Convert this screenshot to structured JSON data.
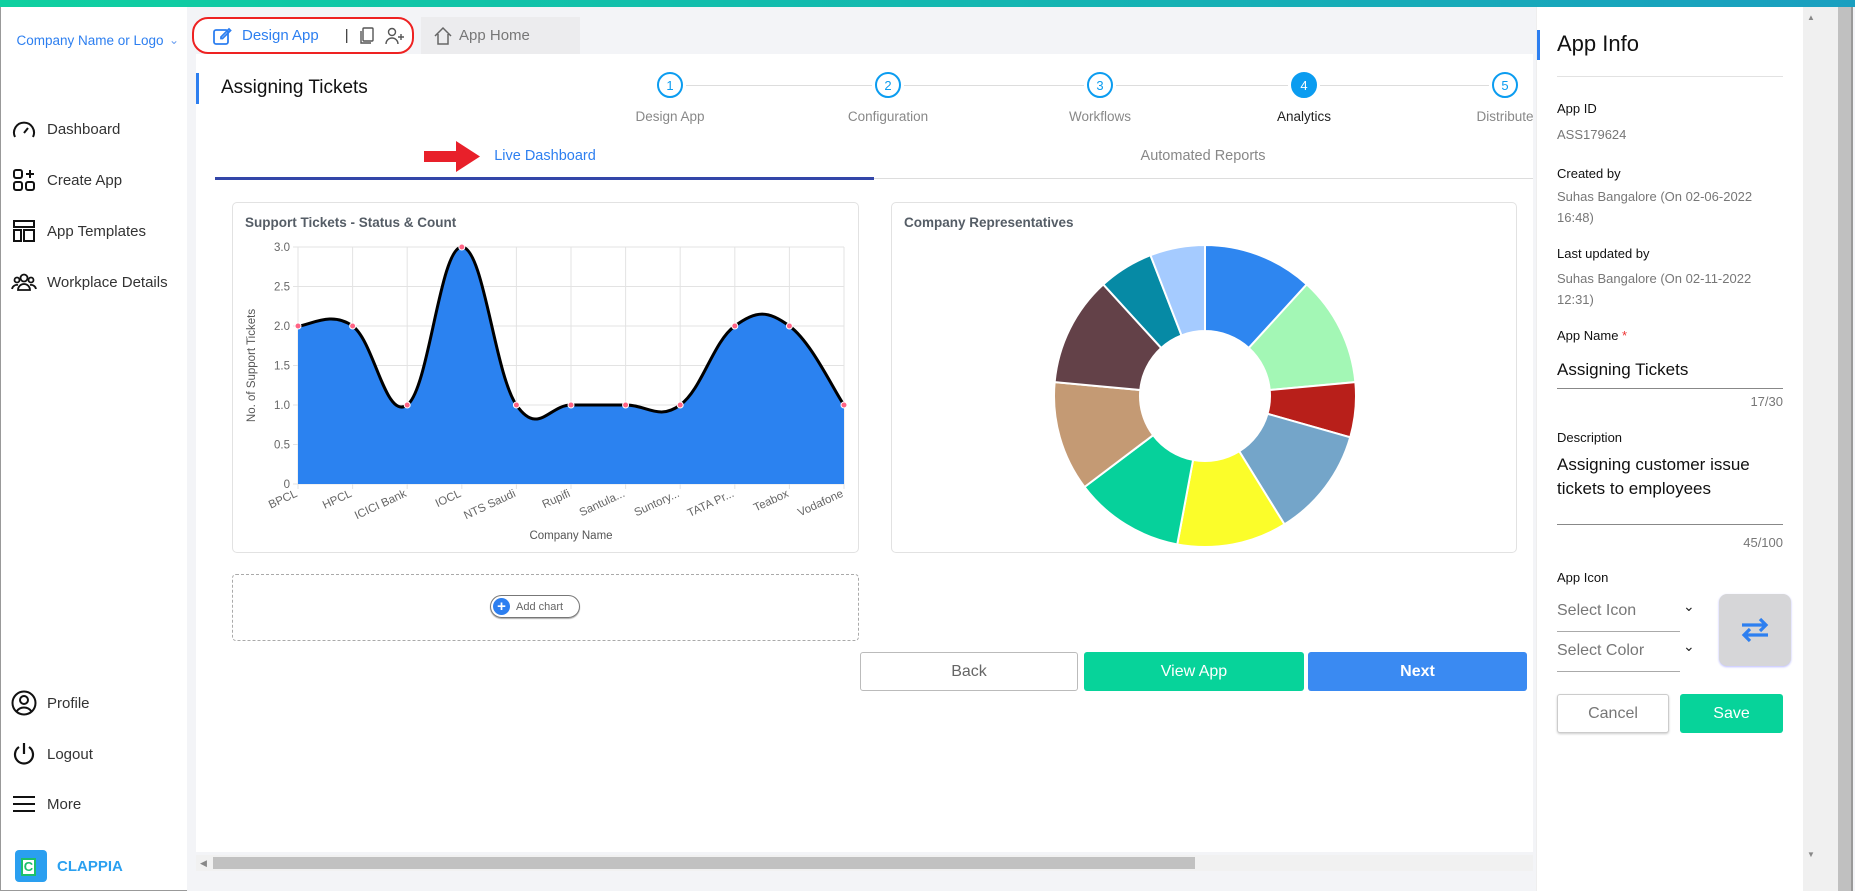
{
  "sidebar": {
    "company": "Company Name or Logo",
    "items": [
      {
        "label": "Dashboard",
        "icon": "dashboard-gauge-icon"
      },
      {
        "label": "Create App",
        "icon": "create-app-icon"
      },
      {
        "label": "App Templates",
        "icon": "templates-icon"
      },
      {
        "label": "Workplace Details",
        "icon": "people-icon"
      }
    ],
    "bottom": [
      {
        "label": "Profile",
        "icon": "profile-icon"
      },
      {
        "label": "Logout",
        "icon": "power-icon"
      },
      {
        "label": "More",
        "icon": "menu-icon"
      }
    ],
    "brand": "CLAPPIA"
  },
  "tabs": {
    "design": "Design App",
    "home": "App Home"
  },
  "page": {
    "title": "Assigning Tickets"
  },
  "stepper": [
    {
      "n": "1",
      "label": "Design App"
    },
    {
      "n": "2",
      "label": "Configuration"
    },
    {
      "n": "3",
      "label": "Workflows"
    },
    {
      "n": "4",
      "label": "Analytics",
      "active": true
    },
    {
      "n": "5",
      "label": "Distribute"
    }
  ],
  "subtabs": {
    "live": "Live Dashboard",
    "reports": "Automated Reports"
  },
  "colors": {
    "accent": "#2d7ff0",
    "green": "#07d39a",
    "step": "#0b9cf0",
    "annotation": "#e8202a"
  },
  "chart_data": [
    {
      "type": "area",
      "title": "Support Tickets - Status & Count",
      "xlabel": "Company Name",
      "ylabel": "No. of Support Tickets",
      "categories": [
        "BPCL",
        "HPCL",
        "ICICI Bank",
        "IOCL",
        "NTS Saudi",
        "Rupifi",
        "Santula...",
        "Suntory...",
        "TATA Pr...",
        "Teabox",
        "Vodafone"
      ],
      "values": [
        2,
        2,
        1,
        3,
        1,
        1,
        1,
        1,
        2,
        2,
        1
      ],
      "ylim": [
        0,
        3
      ],
      "yticks": [
        "0",
        "0.5",
        "1.0",
        "1.5",
        "2.0",
        "2.5",
        "3.0"
      ],
      "grid": true,
      "fill": "#2b82f0",
      "line": "#000000",
      "point": "#ff6384"
    },
    {
      "type": "pie",
      "title": "Company Representatives",
      "donut": true,
      "values": [
        2,
        2,
        1,
        2,
        2,
        2,
        2,
        2,
        1,
        1
      ],
      "colors": [
        "#2e86f0",
        "#a3f7b5",
        "#b81f1a",
        "#74a5c9",
        "#fbfd2a",
        "#06d19b",
        "#c49a74",
        "#634148",
        "#068aa5",
        "#a5cbff"
      ]
    }
  ],
  "add_chart": "Add chart",
  "actions": {
    "back": "Back",
    "view": "View App",
    "next": "Next"
  },
  "appinfo": {
    "title": "App Info",
    "app_id_label": "App ID",
    "app_id": "ASS179624",
    "created_label": "Created by",
    "created": "Suhas Bangalore (On 02-06-2022 16:48)",
    "updated_label": "Last updated by",
    "updated": "Suhas Bangalore (On 02-11-2022 12:31)",
    "name_label": "App Name",
    "required": "*",
    "name": "Assigning Tickets",
    "name_count": "17/30",
    "desc_label": "Description",
    "desc": "Assigning customer issue tickets to employees",
    "desc_count": "45/100",
    "icon_label": "App Icon",
    "select_icon": "Select Icon",
    "select_color": "Select Color",
    "cancel": "Cancel",
    "save": "Save"
  }
}
